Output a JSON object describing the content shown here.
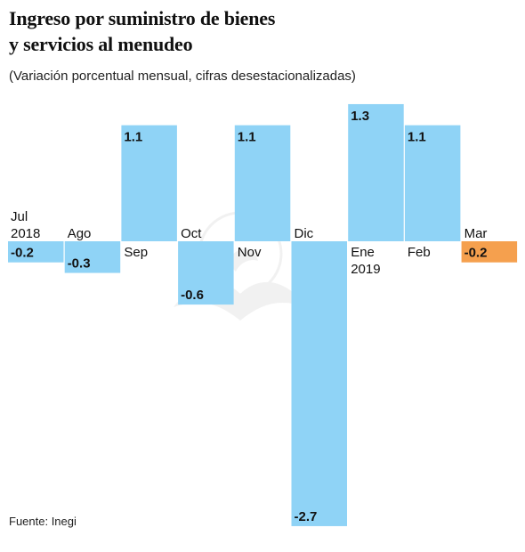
{
  "header": {
    "title_line1": "Ingreso por suministro de bienes",
    "title_line2": "y servicios al menudeo",
    "subtitle": "(Variación porcentual mensual, cifras desestacionalizadas)"
  },
  "footer": {
    "source": "Fuente: Inegi"
  },
  "chart_data": {
    "type": "bar",
    "title": "Ingreso por suministro de bienes y servicios al menudeo",
    "subtitle": "(Variación porcentual mensual, cifras desestacionalizadas)",
    "categories": [
      [
        "Jul",
        "2018"
      ],
      [
        "Ago"
      ],
      [
        "Sep"
      ],
      [
        "Oct"
      ],
      [
        "Nov"
      ],
      [
        "Dic"
      ],
      [
        "Ene",
        "2019"
      ],
      [
        "Feb"
      ],
      [
        "Mar"
      ]
    ],
    "values": [
      -0.2,
      -0.3,
      1.1,
      -0.6,
      1.1,
      -2.7,
      1.3,
      1.1,
      -0.2
    ],
    "value_labels": [
      "-0.2",
      "-0.3",
      "1.1",
      "-0.6",
      "1.1",
      "-2.7",
      "1.3",
      "1.1",
      "-0.2"
    ],
    "highlight_index": 8,
    "colors": {
      "bar": "#8fd3f6",
      "highlight": "#f5a04e",
      "text": "#111111"
    },
    "ylim": [
      -2.7,
      1.3
    ],
    "grid": false,
    "legend": "none",
    "xlabel": "",
    "ylabel": ""
  }
}
